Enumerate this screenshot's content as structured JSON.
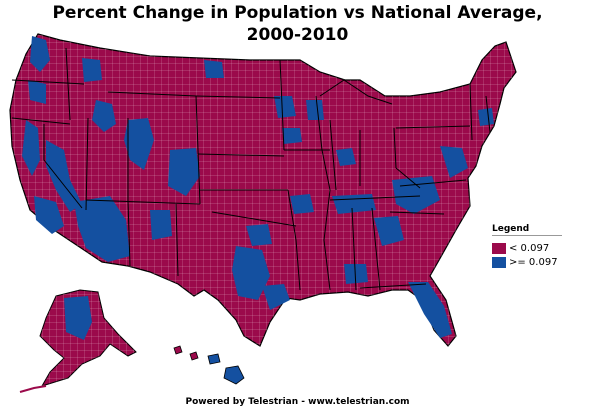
{
  "title_line1": "Percent Change in Population vs National Average,",
  "title_line2": "2000-2010",
  "legend": {
    "title": "Legend",
    "items": [
      {
        "label": "< 0.097",
        "color": "#9b0a4b"
      },
      {
        "label": ">= 0.097",
        "color": "#1450a0"
      }
    ]
  },
  "footer": "Powered by Telestrian - www.telestrian.com",
  "colors": {
    "below": "#9b0a4b",
    "above": "#1450a0",
    "border": "#000000",
    "county_line": "#d9a0b8"
  }
}
